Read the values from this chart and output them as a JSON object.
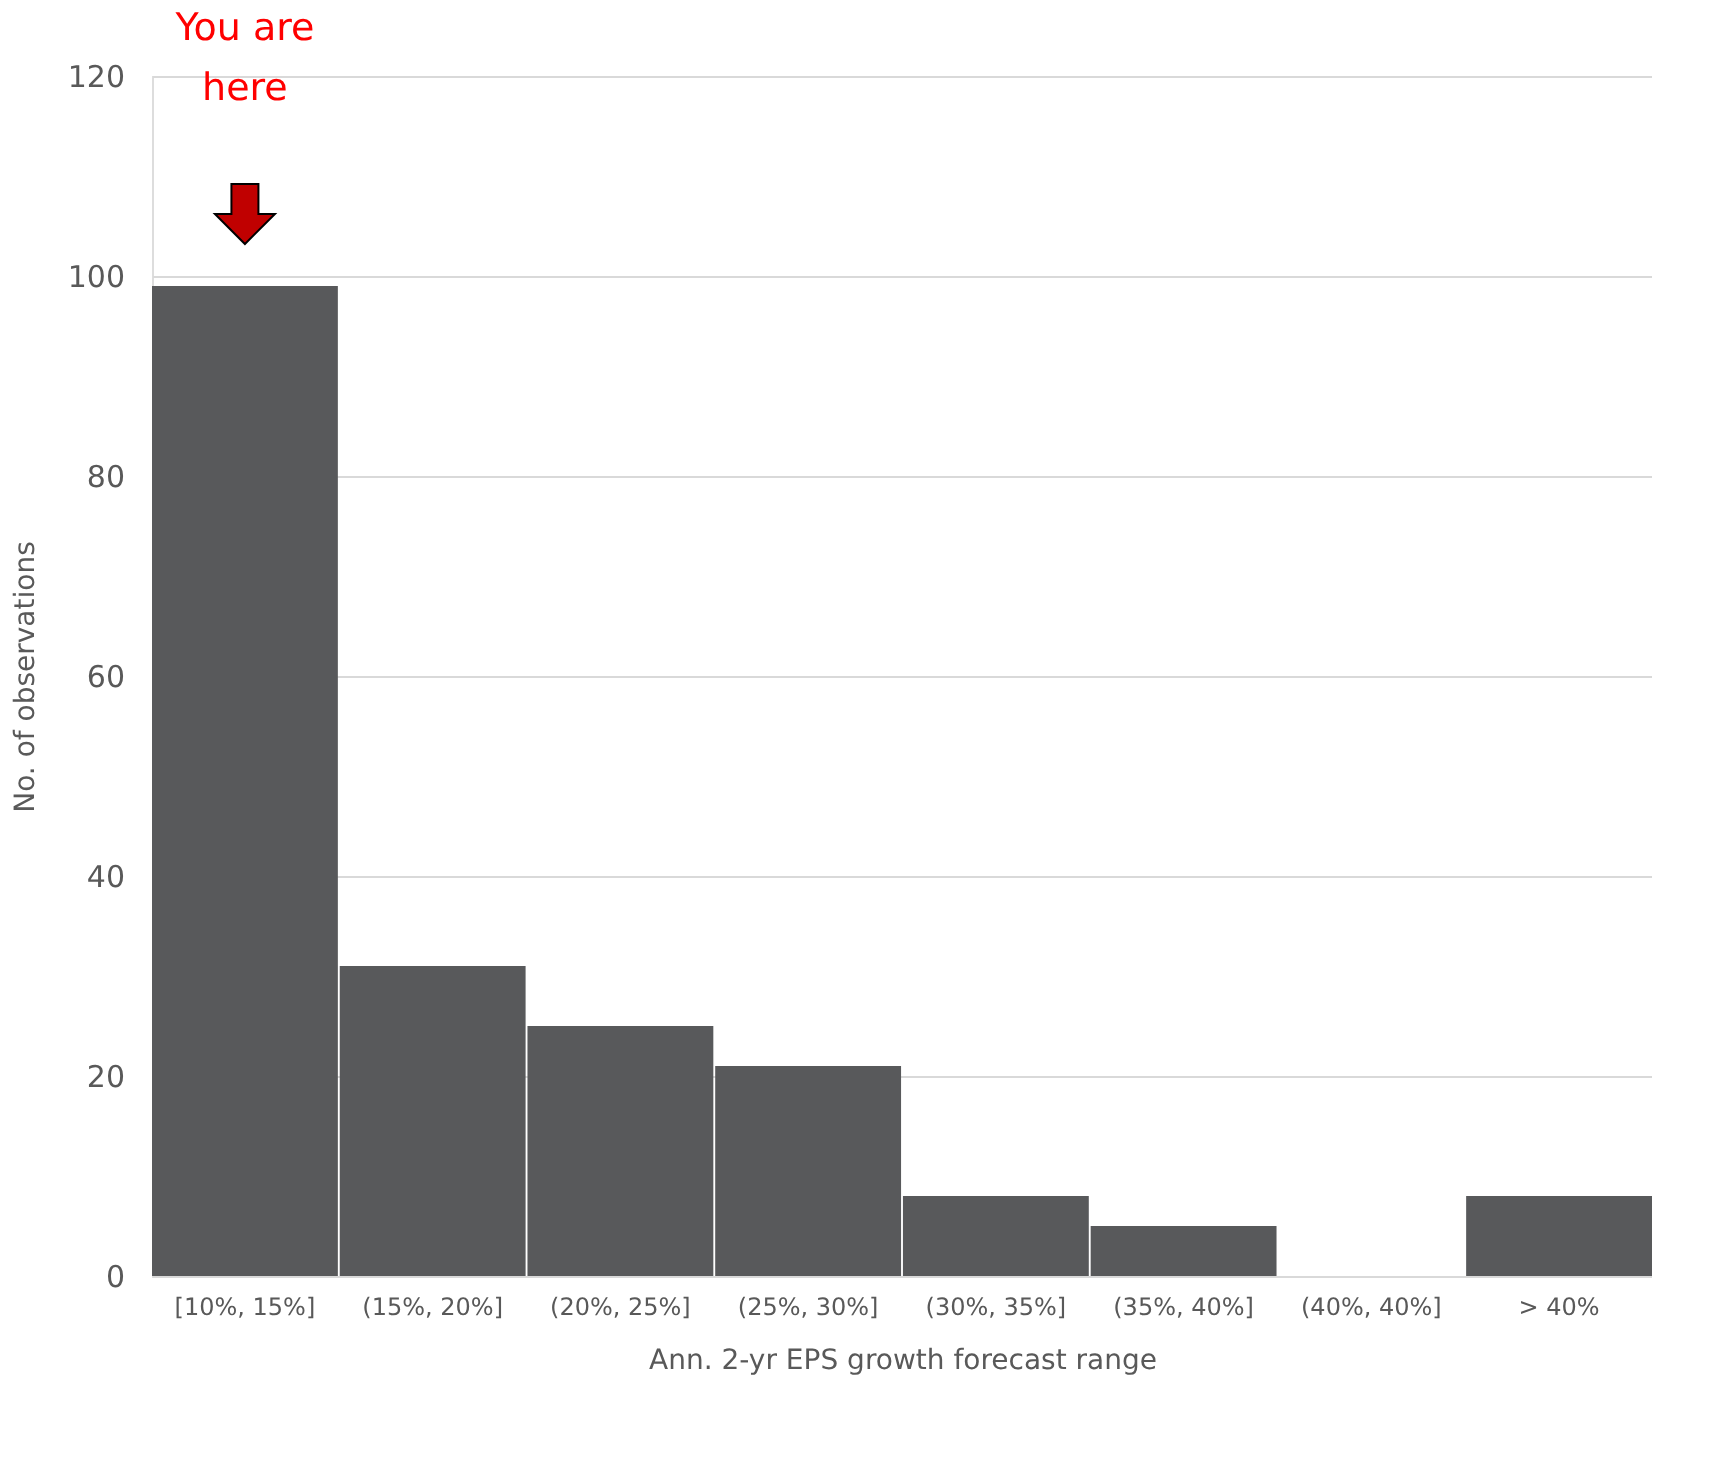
{
  "chart_data": {
    "type": "bar",
    "xlabel": "Ann. 2-yr EPS growth forecast range",
    "ylabel": "No. of observations",
    "categories": [
      "[10%, 15%]",
      "(15%, 20%]",
      "(20%, 25%]",
      "(25%, 30%]",
      "(30%, 35%]",
      "(35%, 40%]",
      "(40%, 40%]",
      "> 40%"
    ],
    "values": [
      99,
      31,
      25,
      21,
      8,
      5,
      0,
      8
    ],
    "color": "#58595b",
    "ylim": [
      0,
      120
    ],
    "yticks": [
      0,
      20,
      40,
      60,
      80,
      100,
      120
    ],
    "grid": "y",
    "annotations": [
      "You are here"
    ]
  }
}
